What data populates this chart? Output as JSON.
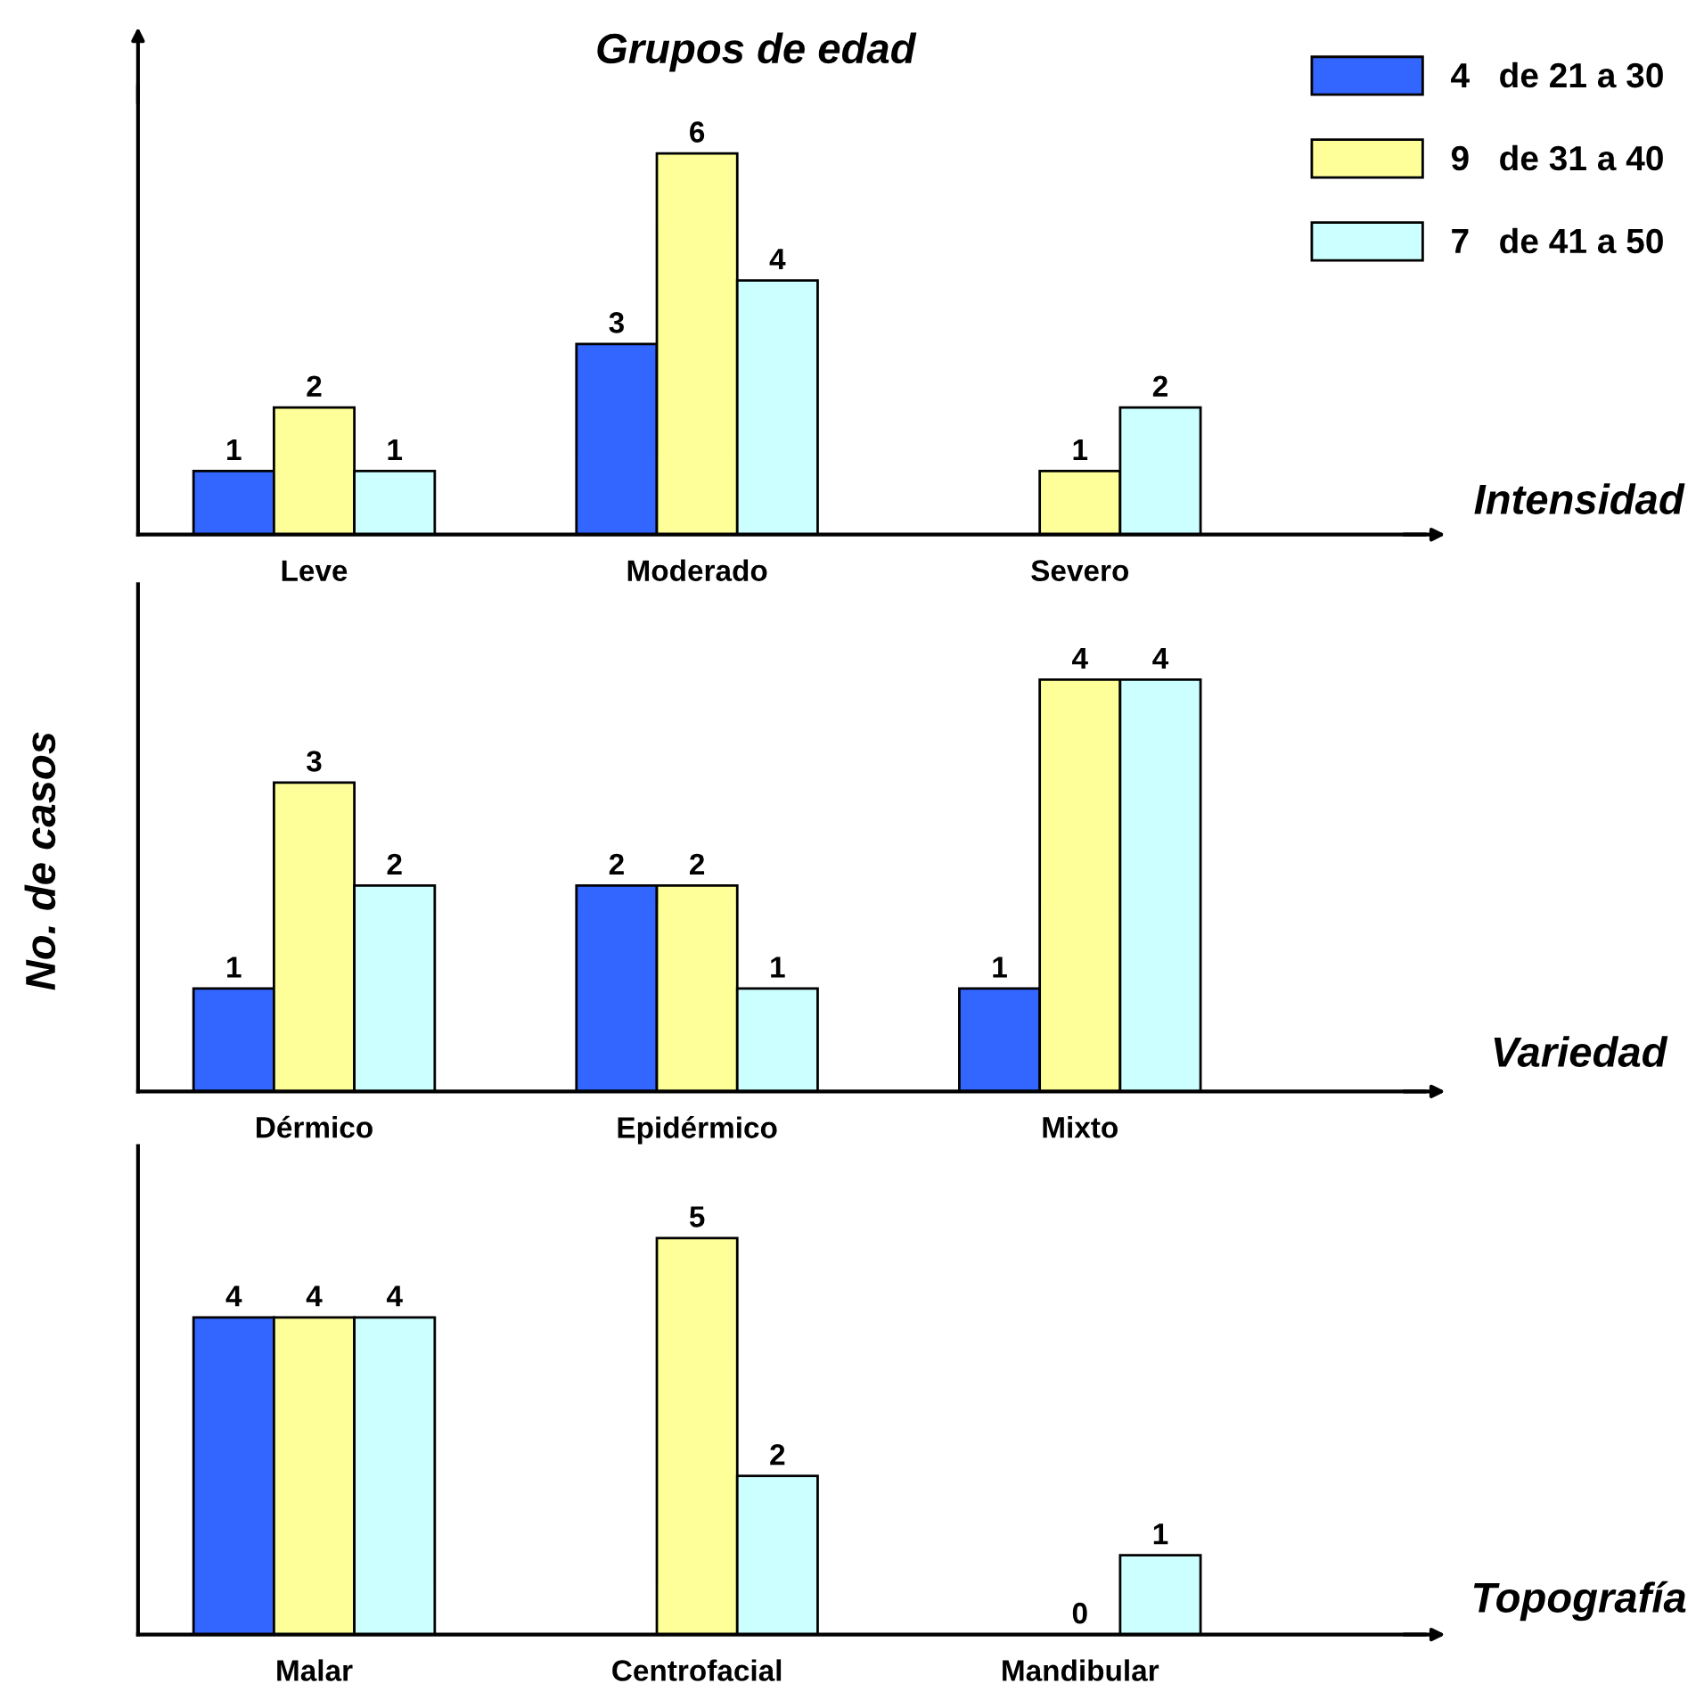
{
  "chart_data": [
    {
      "type": "bar",
      "title": "Grupos de edad",
      "xlabel": "Intensidad",
      "categories": [
        "Leve",
        "Moderado",
        "Severo"
      ],
      "legend": "top right",
      "data_labels": true,
      "grid": false,
      "series": [
        {
          "name": "4   de 21 a 30",
          "color": "#3366ff",
          "values": [
            1,
            3,
            null
          ]
        },
        {
          "name": "9   de 31 a 40",
          "color": "#ffff99",
          "values": [
            2,
            6,
            1
          ]
        },
        {
          "name": "7   de 41 a 50",
          "color": "#ccffff",
          "values": [
            1,
            4,
            2
          ]
        }
      ]
    },
    {
      "type": "bar",
      "xlabel": "Variedad",
      "ylabel": "No. de casos",
      "categories": [
        "Dérmico",
        "Epidérmico",
        "Mixto"
      ],
      "data_labels": true,
      "grid": false,
      "series": [
        {
          "color": "#3366ff",
          "values": [
            1,
            2,
            1
          ]
        },
        {
          "color": "#ffff99",
          "values": [
            3,
            2,
            4
          ]
        },
        {
          "color": "#ccffff",
          "values": [
            2,
            1,
            4
          ]
        }
      ]
    },
    {
      "type": "bar",
      "xlabel": "Topografía",
      "categories": [
        "Malar",
        "Centrofacial",
        "Mandibular"
      ],
      "data_labels": true,
      "grid": false,
      "series": [
        {
          "color": "#3366ff",
          "values": [
            4,
            null,
            null
          ]
        },
        {
          "color": "#ffff99",
          "values": [
            4,
            5,
            0
          ]
        },
        {
          "color": "#ccffff",
          "values": [
            4,
            2,
            1
          ]
        }
      ]
    }
  ]
}
